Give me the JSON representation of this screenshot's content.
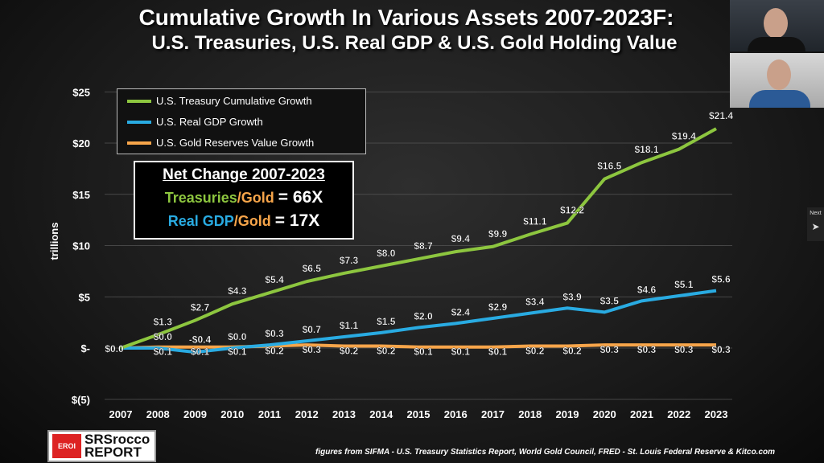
{
  "title_line1": "Cumulative Growth In Various Assets 2007-2023F:",
  "title_line2": "U.S. Treasuries, U.S. Real GDP & U.S. Gold Holding Value",
  "net_change": {
    "heading": "Net Change 2007-2023",
    "row1_label_a": "Treasuries",
    "row1_label_b": "/Gold",
    "row1_value": "= 66X",
    "row2_label_a": "Real GDP",
    "row2_label_b": "/Gold",
    "row2_value": "= 17X"
  },
  "footer": "figures from SIFMA - U.S. Treasury Statistics Report,  World Gold Council, FRED - St. Louis Federal Reserve & Kitco.com",
  "logo": {
    "badge": "EROI",
    "text1": "SRSrocco",
    "text2": "REPORT"
  },
  "next_label": "Next",
  "colors": {
    "treasury": "#8dc63f",
    "gdp": "#29abe2",
    "gold": "#f7a54a"
  },
  "chart_data": {
    "type": "line",
    "ylabel": "trillions",
    "ylim": [
      -5,
      25
    ],
    "yticks": [
      "$(5)",
      "$-",
      "$5",
      "$10",
      "$15",
      "$20",
      "$25"
    ],
    "ytick_values": [
      -5,
      0,
      5,
      10,
      15,
      20,
      25
    ],
    "x": [
      "2007",
      "2008",
      "2009",
      "2010",
      "2011",
      "2012",
      "2013",
      "2014",
      "2015",
      "2016",
      "2017",
      "2018",
      "2019",
      "2020",
      "2021",
      "2022",
      "2023"
    ],
    "legend": "top-left",
    "series": [
      {
        "name": "U.S. Treasury Cumulative Growth",
        "values": [
          0.0,
          1.3,
          2.7,
          4.3,
          5.4,
          6.5,
          7.3,
          8.0,
          8.7,
          9.4,
          9.9,
          11.1,
          12.2,
          16.5,
          18.1,
          19.4,
          21.4
        ],
        "labels": [
          "$0.0",
          "$1.3",
          "$2.7",
          "$4.3",
          "$5.4",
          "$6.5",
          "$7.3",
          "$8.0",
          "$8.7",
          "$9.4",
          "$9.9",
          "$11.1",
          "$12.2",
          "$16.5",
          "$18.1",
          "$19.4",
          "$21.4"
        ]
      },
      {
        "name": "U.S. Real GDP Growth",
        "values": [
          0.0,
          0.0,
          -0.4,
          0.0,
          0.3,
          0.7,
          1.1,
          1.5,
          2.0,
          2.4,
          2.9,
          3.4,
          3.9,
          3.5,
          4.6,
          5.1,
          5.6
        ],
        "labels": [
          "",
          "$0.0",
          "-$0.4",
          "$0.0",
          "$0.3",
          "$0.7",
          "$1.1",
          "$1.5",
          "$2.0",
          "$2.4",
          "$2.9",
          "$3.4",
          "$3.9",
          "$3.5",
          "$4.6",
          "$5.1",
          "$5.6"
        ]
      },
      {
        "name": "U.S. Gold Reserves Value Growth",
        "values": [
          0.0,
          0.1,
          0.1,
          0.1,
          0.2,
          0.3,
          0.2,
          0.2,
          0.1,
          0.1,
          0.1,
          0.2,
          0.2,
          0.3,
          0.3,
          0.3,
          0.3
        ],
        "labels": [
          "",
          "$0.1",
          "$0.1",
          "$0.1",
          "$0.2",
          "$0.3",
          "$0.2",
          "$0.2",
          "$0.1",
          "$0.1",
          "$0.1",
          "$0.2",
          "$0.2",
          "$0.3",
          "$0.3",
          "$0.3",
          "$0.3"
        ]
      }
    ]
  }
}
